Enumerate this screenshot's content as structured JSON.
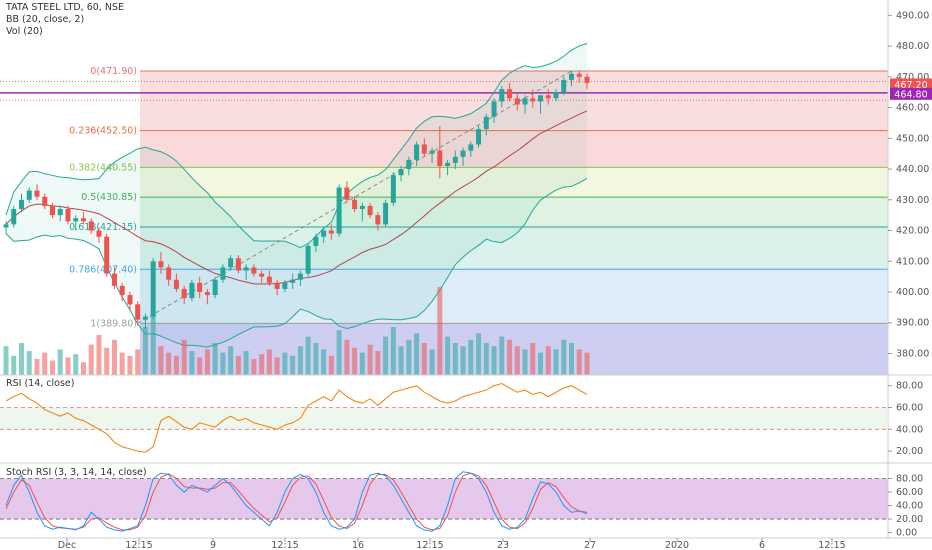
{
  "chart_data": {
    "type": "candlestick",
    "title": "TATA STEEL LTD, 60, NSE",
    "indicators": [
      "BB (20, close, 2)",
      "Vol (20)"
    ],
    "price_axis": {
      "min": 373,
      "max": 495,
      "ticks": [
        380,
        390,
        400,
        410,
        420,
        430,
        440,
        450,
        460,
        470,
        480,
        490
      ],
      "tick_labels": [
        "380.00",
        "390.00",
        "400.00",
        "410.00",
        "420.00",
        "430.00",
        "440.00",
        "450.00",
        "460.00",
        "470.00",
        "480.00",
        "490.00"
      ]
    },
    "price_badges": [
      {
        "label": "467.20",
        "value": 467.2,
        "color": "#ef5350"
      },
      {
        "label": "464.80",
        "value": 464.8,
        "color": "#9c27b0"
      }
    ],
    "fib_levels": [
      {
        "label": "0(471.90)",
        "value": 471.9,
        "color": "#e57373",
        "fill": "#f6d3d3"
      },
      {
        "label": "0.236(452.50)",
        "value": 452.5,
        "color": "#ef6c3f",
        "fill": "#f7cccc"
      },
      {
        "label": "0.382(440.55)",
        "value": 440.55,
        "color": "#8bc34a",
        "fill": "#eef4d4"
      },
      {
        "label": "0.5(430.85)",
        "value": 430.85,
        "color": "#4caf50",
        "fill": "#d6efd8"
      },
      {
        "label": "0.618(421.15)",
        "value": 421.15,
        "color": "#26a69a",
        "fill": "#cfece6"
      },
      {
        "label": "0.786(407.40)",
        "value": 407.4,
        "color": "#42a5f5",
        "fill": "#d2e6f5"
      },
      {
        "label": "1(389.80)",
        "value": 389.8,
        "color": "#9e9e9e",
        "fill": "#e4e4e4"
      }
    ],
    "fib_bottom_fill": "#c9c9f2",
    "time_axis": {
      "labels": [
        "Dec",
        "12:15",
        "9",
        "12:15",
        "16",
        "12:15",
        "23",
        "27",
        "2020",
        "6",
        "12:15"
      ]
    },
    "candles_ohlc": [
      [
        421,
        423,
        419,
        422
      ],
      [
        422,
        428,
        421,
        427
      ],
      [
        427,
        432,
        426,
        430
      ],
      [
        430,
        434,
        429,
        433
      ],
      [
        433,
        435,
        430,
        431
      ],
      [
        431,
        432,
        427,
        428
      ],
      [
        428,
        429,
        424,
        425
      ],
      [
        425,
        428,
        423,
        427
      ],
      [
        427,
        428,
        422,
        423
      ],
      [
        423,
        425,
        420,
        424
      ],
      [
        424,
        426,
        422,
        423
      ],
      [
        423,
        424,
        419,
        420
      ],
      [
        420,
        421,
        416,
        418
      ],
      [
        418,
        419,
        405,
        406
      ],
      [
        406,
        408,
        401,
        402
      ],
      [
        402,
        403,
        397,
        399
      ],
      [
        399,
        400,
        394,
        396
      ],
      [
        396,
        397,
        389,
        391
      ],
      [
        391,
        393,
        388,
        392
      ],
      [
        392,
        411,
        391,
        410
      ],
      [
        410,
        413,
        406,
        408
      ],
      [
        408,
        409,
        402,
        404
      ],
      [
        404,
        406,
        400,
        401
      ],
      [
        401,
        402,
        396,
        398
      ],
      [
        398,
        404,
        397,
        403
      ],
      [
        403,
        405,
        398,
        400
      ],
      [
        400,
        401,
        396,
        399
      ],
      [
        399,
        405,
        398,
        404
      ],
      [
        404,
        409,
        403,
        408
      ],
      [
        408,
        412,
        407,
        411
      ],
      [
        411,
        412,
        406,
        407
      ],
      [
        407,
        409,
        404,
        408
      ],
      [
        408,
        409,
        405,
        406
      ],
      [
        406,
        407,
        403,
        405
      ],
      [
        405,
        407,
        402,
        403
      ],
      [
        403,
        404,
        399,
        401
      ],
      [
        401,
        404,
        400,
        403
      ],
      [
        403,
        406,
        401,
        404
      ],
      [
        404,
        407,
        402,
        406
      ],
      [
        406,
        416,
        405,
        415
      ],
      [
        415,
        419,
        413,
        418
      ],
      [
        418,
        421,
        416,
        420
      ],
      [
        420,
        422,
        417,
        419
      ],
      [
        419,
        435,
        418,
        434
      ],
      [
        434,
        436,
        429,
        430
      ],
      [
        430,
        431,
        426,
        427
      ],
      [
        427,
        429,
        423,
        428
      ],
      [
        428,
        429,
        424,
        425
      ],
      [
        425,
        426,
        420,
        422
      ],
      [
        422,
        430,
        421,
        429
      ],
      [
        429,
        439,
        428,
        438
      ],
      [
        438,
        441,
        436,
        440
      ],
      [
        440,
        444,
        438,
        443
      ],
      [
        443,
        449,
        441,
        448
      ],
      [
        448,
        450,
        444,
        445
      ],
      [
        445,
        447,
        442,
        446
      ],
      [
        446,
        454,
        437,
        441
      ],
      [
        441,
        443,
        438,
        442
      ],
      [
        442,
        446,
        440,
        444
      ],
      [
        444,
        447,
        441,
        446
      ],
      [
        446,
        449,
        444,
        448
      ],
      [
        448,
        454,
        447,
        453
      ],
      [
        453,
        458,
        451,
        457
      ],
      [
        457,
        463,
        455,
        462
      ],
      [
        462,
        467,
        460,
        466
      ],
      [
        466,
        468,
        462,
        463
      ],
      [
        463,
        465,
        459,
        461
      ],
      [
        461,
        464,
        458,
        463
      ],
      [
        463,
        466,
        460,
        462
      ],
      [
        462,
        464,
        458,
        464
      ],
      [
        464,
        466,
        461,
        463
      ],
      [
        463,
        466,
        462,
        465
      ],
      [
        465,
        470,
        464,
        469
      ],
      [
        469,
        472,
        467,
        471
      ],
      [
        471,
        472,
        468,
        470
      ],
      [
        470,
        471,
        466,
        468
      ]
    ],
    "volume": [
      18,
      12,
      20,
      15,
      10,
      14,
      9,
      16,
      11,
      13,
      8,
      19,
      25,
      17,
      22,
      14,
      12,
      16,
      30,
      40,
      18,
      14,
      12,
      22,
      15,
      11,
      16,
      20,
      14,
      18,
      12,
      15,
      10,
      13,
      16,
      11,
      14,
      12,
      18,
      24,
      20,
      16,
      12,
      28,
      22,
      17,
      14,
      19,
      15,
      24,
      30,
      18,
      22,
      26,
      20,
      16,
      55,
      24,
      20,
      18,
      22,
      26,
      20,
      18,
      24,
      22,
      18,
      16,
      20,
      14,
      18,
      16,
      22,
      20,
      16,
      14
    ],
    "rsi": {
      "label": "RSI (14, close)",
      "ticks": [
        20,
        40,
        60,
        80
      ],
      "tick_labels": [
        "20.00",
        "40.00",
        "60.00",
        "80.00"
      ],
      "upper": 60,
      "lower": 40,
      "min": 10,
      "max": 88,
      "values": [
        66,
        70,
        73,
        68,
        64,
        58,
        55,
        52,
        55,
        50,
        48,
        44,
        40,
        36,
        28,
        24,
        22,
        20,
        19,
        24,
        48,
        52,
        47,
        42,
        40,
        46,
        44,
        42,
        48,
        52,
        48,
        50,
        46,
        44,
        42,
        40,
        44,
        46,
        50,
        62,
        66,
        70,
        66,
        76,
        70,
        66,
        64,
        68,
        62,
        68,
        74,
        76,
        78,
        80,
        74,
        70,
        66,
        64,
        66,
        70,
        72,
        74,
        76,
        80,
        82,
        78,
        74,
        76,
        72,
        74,
        70,
        74,
        78,
        80,
        76,
        72
      ]
    },
    "stoch_rsi": {
      "label": "Stoch RSI (3, 3, 14, 14, close)",
      "ticks": [
        0,
        20,
        40,
        60,
        80
      ],
      "tick_labels": [
        "0.00",
        "20.00",
        "40.00",
        "60.00",
        "80.00"
      ],
      "upper": 80,
      "lower": 20,
      "min": -8,
      "max": 100,
      "k": [
        40,
        70,
        85,
        60,
        30,
        10,
        5,
        8,
        6,
        4,
        10,
        30,
        20,
        8,
        4,
        2,
        6,
        10,
        40,
        80,
        88,
        86,
        70,
        60,
        70,
        65,
        60,
        70,
        80,
        70,
        55,
        40,
        30,
        20,
        10,
        30,
        60,
        80,
        86,
        80,
        60,
        30,
        10,
        5,
        8,
        20,
        60,
        85,
        88,
        84,
        70,
        50,
        30,
        10,
        4,
        2,
        10,
        40,
        80,
        90,
        88,
        80,
        60,
        30,
        10,
        5,
        8,
        20,
        50,
        75,
        72,
        60,
        40,
        30,
        32,
        28
      ],
      "d": [
        35,
        60,
        78,
        70,
        45,
        22,
        10,
        7,
        6,
        5,
        8,
        20,
        22,
        14,
        8,
        4,
        4,
        8,
        25,
        60,
        82,
        87,
        80,
        68,
        66,
        66,
        64,
        66,
        74,
        74,
        62,
        48,
        36,
        26,
        16,
        22,
        45,
        70,
        82,
        84,
        72,
        48,
        22,
        10,
        6,
        14,
        40,
        72,
        86,
        86,
        78,
        60,
        40,
        20,
        8,
        4,
        6,
        25,
        60,
        84,
        88,
        84,
        70,
        45,
        20,
        8,
        6,
        14,
        36,
        64,
        74,
        68,
        52,
        38,
        32,
        30
      ]
    }
  }
}
